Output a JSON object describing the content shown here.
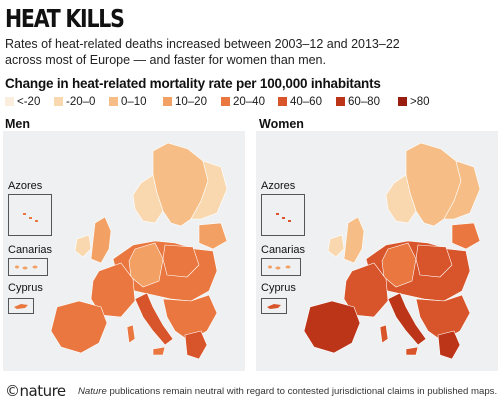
{
  "header": {
    "title": "HEAT KILLS",
    "subtitle": "Rates of heat-related deaths increased between 2003–12 and 2013–22 across most of Europe — and faster for women than men."
  },
  "legend": {
    "title": "Change in heat-related mortality rate per 100,000 inhabitants",
    "items": [
      {
        "label": "<-20",
        "color": "#fbeede"
      },
      {
        "label": "-20–0",
        "color": "#f9d8b0"
      },
      {
        "label": "0–10",
        "color": "#f6be86"
      },
      {
        "label": "10–20",
        "color": "#f2a064"
      },
      {
        "label": "20–40",
        "color": "#e9773f"
      },
      {
        "label": "40–60",
        "color": "#d8542a"
      },
      {
        "label": "60–80",
        "color": "#bd3519"
      },
      {
        "label": ">80",
        "color": "#9a1e10"
      }
    ]
  },
  "panels": [
    {
      "label": "Men",
      "insets": [
        "Azores",
        "Canarias",
        "Cyprus"
      ]
    },
    {
      "label": "Women",
      "insets": [
        "Azores",
        "Canarias",
        "Cyprus"
      ]
    }
  ],
  "footer": {
    "logo": "©nature",
    "note_em": "Nature",
    "note_rest": " publications remain neutral with regard to contested jurisdictional claims in published maps."
  }
}
